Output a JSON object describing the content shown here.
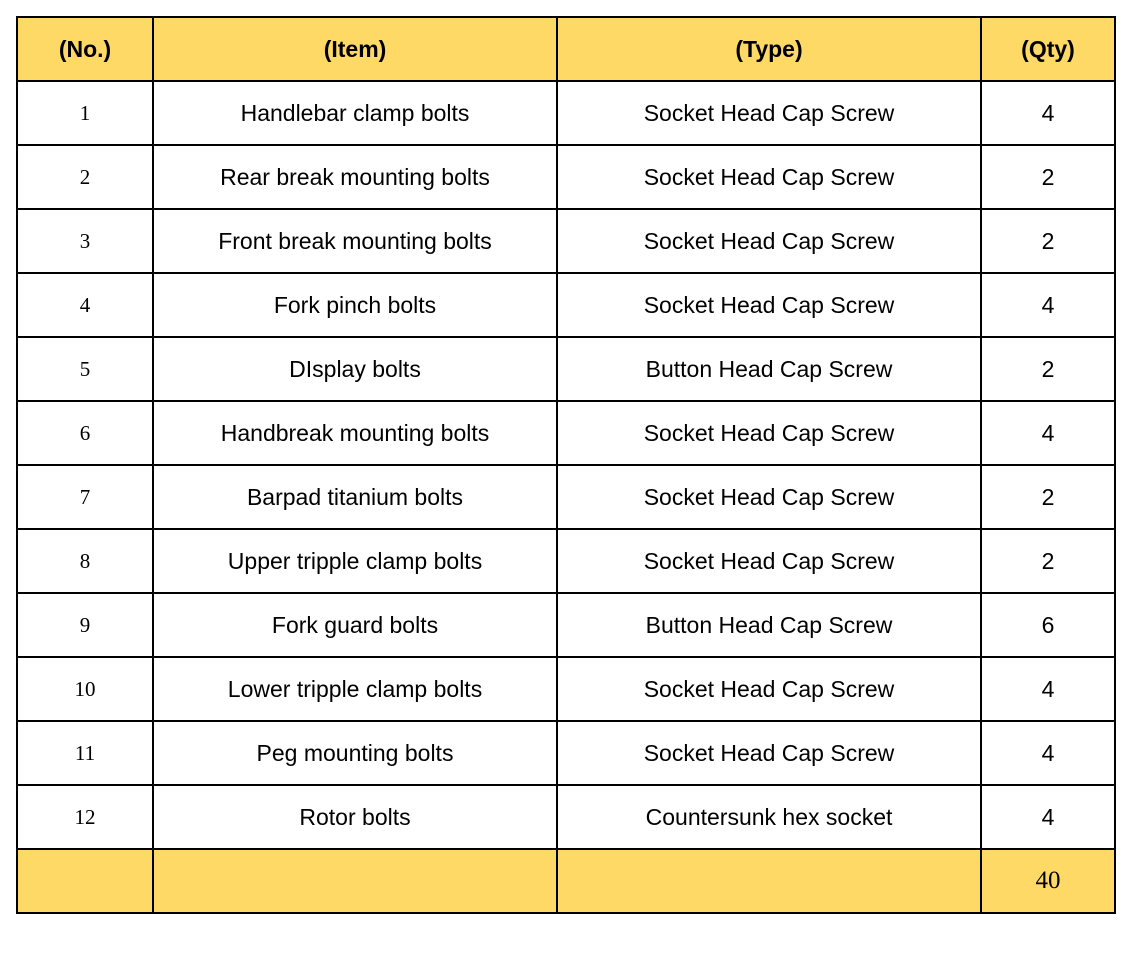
{
  "table": {
    "header": [
      "(No.)",
      "(Item)",
      "(Type)",
      "(Qty)"
    ],
    "rows": [
      [
        1,
        "Handlebar clamp bolts",
        "Socket Head Cap Screw",
        4
      ],
      [
        2,
        "Rear break mounting bolts",
        "Socket Head Cap Screw",
        2
      ],
      [
        3,
        "Front break mounting bolts",
        "Socket Head Cap Screw",
        2
      ],
      [
        4,
        "Fork pinch bolts",
        "Socket Head Cap Screw",
        4
      ],
      [
        5,
        "DIsplay bolts",
        "Button Head Cap Screw",
        2
      ],
      [
        6,
        "Handbreak mounting bolts",
        "Socket Head Cap Screw",
        4
      ],
      [
        7,
        "Barpad titanium bolts",
        "Socket Head Cap Screw",
        2
      ],
      [
        8,
        "Upper tripple clamp bolts",
        "Socket Head Cap Screw",
        2
      ],
      [
        9,
        "Fork guard bolts",
        "Button Head Cap Screw",
        6
      ],
      [
        10,
        "Lower tripple clamp bolts",
        "Socket Head Cap Screw",
        4
      ],
      [
        11,
        "Peg mounting bolts",
        "Socket Head Cap Screw",
        4
      ],
      [
        12,
        "Rotor bolts",
        "Countersunk hex socket",
        4
      ]
    ],
    "total": 40
  }
}
